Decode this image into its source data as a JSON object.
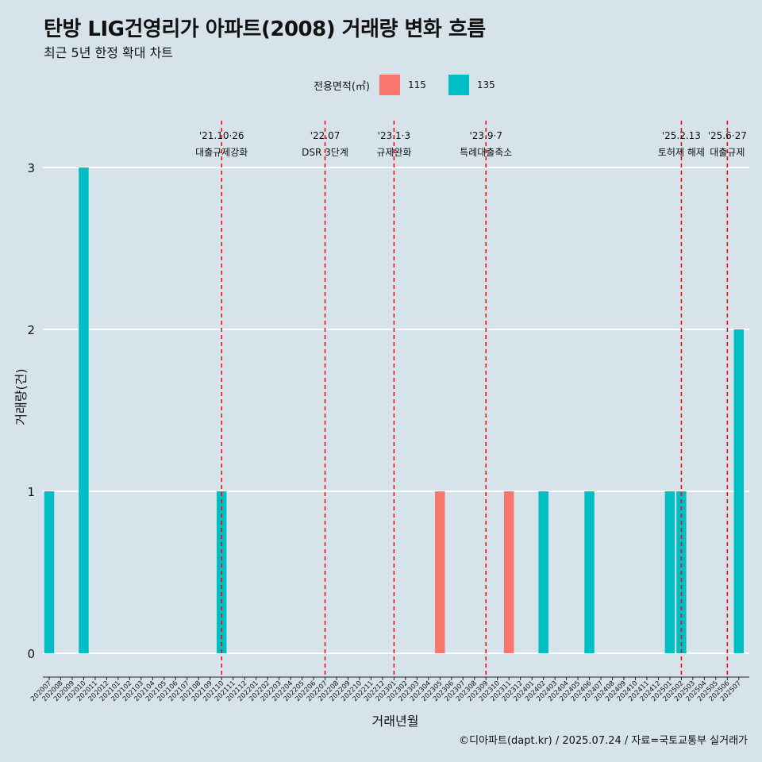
{
  "title": "탄방 LIG건영리가 아파트(2008) 거래량 변화 흐름",
  "subtitle": "최근 5년 한정 확대 차트",
  "legend": {
    "title": "전용면적(㎡)",
    "items": [
      {
        "label": "115",
        "color": "#f8766d"
      },
      {
        "label": "135",
        "color": "#00bfc4"
      }
    ]
  },
  "caption": "©디아파트(dapt.kr) / 2025.07.24 / 자료=국토교통부 실거래가",
  "chart_data": {
    "type": "bar",
    "xlabel": "거래년월",
    "ylabel": "거래량(건)",
    "ylim": [
      0,
      3
    ],
    "yticks": [
      0,
      1,
      2,
      3
    ],
    "grid": true,
    "legend_position": "top",
    "categories": [
      "202007",
      "202008",
      "202009",
      "202010",
      "202011",
      "202012",
      "202101",
      "202102",
      "202103",
      "202104",
      "202105",
      "202106",
      "202107",
      "202108",
      "202109",
      "202110",
      "202111",
      "202112",
      "202201",
      "202202",
      "202203",
      "202204",
      "202205",
      "202206",
      "202207",
      "202208",
      "202209",
      "202210",
      "202211",
      "202212",
      "202301",
      "202302",
      "202303",
      "202304",
      "202305",
      "202306",
      "202307",
      "202308",
      "202309",
      "202310",
      "202311",
      "202312",
      "202401",
      "202402",
      "202403",
      "202404",
      "202405",
      "202406",
      "202407",
      "202408",
      "202409",
      "202410",
      "202411",
      "202412",
      "202501",
      "202502",
      "202503",
      "202504",
      "202505",
      "202506",
      "202507"
    ],
    "bars": [
      {
        "month": "202007",
        "series": "135",
        "value": 1
      },
      {
        "month": "202010",
        "series": "135",
        "value": 3
      },
      {
        "month": "202110",
        "series": "135",
        "value": 1
      },
      {
        "month": "202305",
        "series": "115",
        "value": 1
      },
      {
        "month": "202311",
        "series": "115",
        "value": 1
      },
      {
        "month": "202402",
        "series": "135",
        "value": 1
      },
      {
        "month": "202406",
        "series": "135",
        "value": 1
      },
      {
        "month": "202501",
        "series": "135",
        "value": 1
      },
      {
        "month": "202502",
        "series": "135",
        "value": 1
      },
      {
        "month": "202507",
        "series": "135",
        "value": 2
      }
    ],
    "events": [
      {
        "month": "202110",
        "date": "'21.10·26",
        "label": "대출규제강화"
      },
      {
        "month": "202207",
        "date": "'22.07",
        "label": "DSR 3단계"
      },
      {
        "month": "202301",
        "date": "'23.1·3",
        "label": "규제완화"
      },
      {
        "month": "202309",
        "date": "'23.9·7",
        "label": "특례대출축소"
      },
      {
        "month": "202502",
        "date": "'25.2.13",
        "label": "토허제 해제"
      },
      {
        "month": "202506",
        "date": "'25.6·27",
        "label": "대출규제"
      }
    ]
  }
}
